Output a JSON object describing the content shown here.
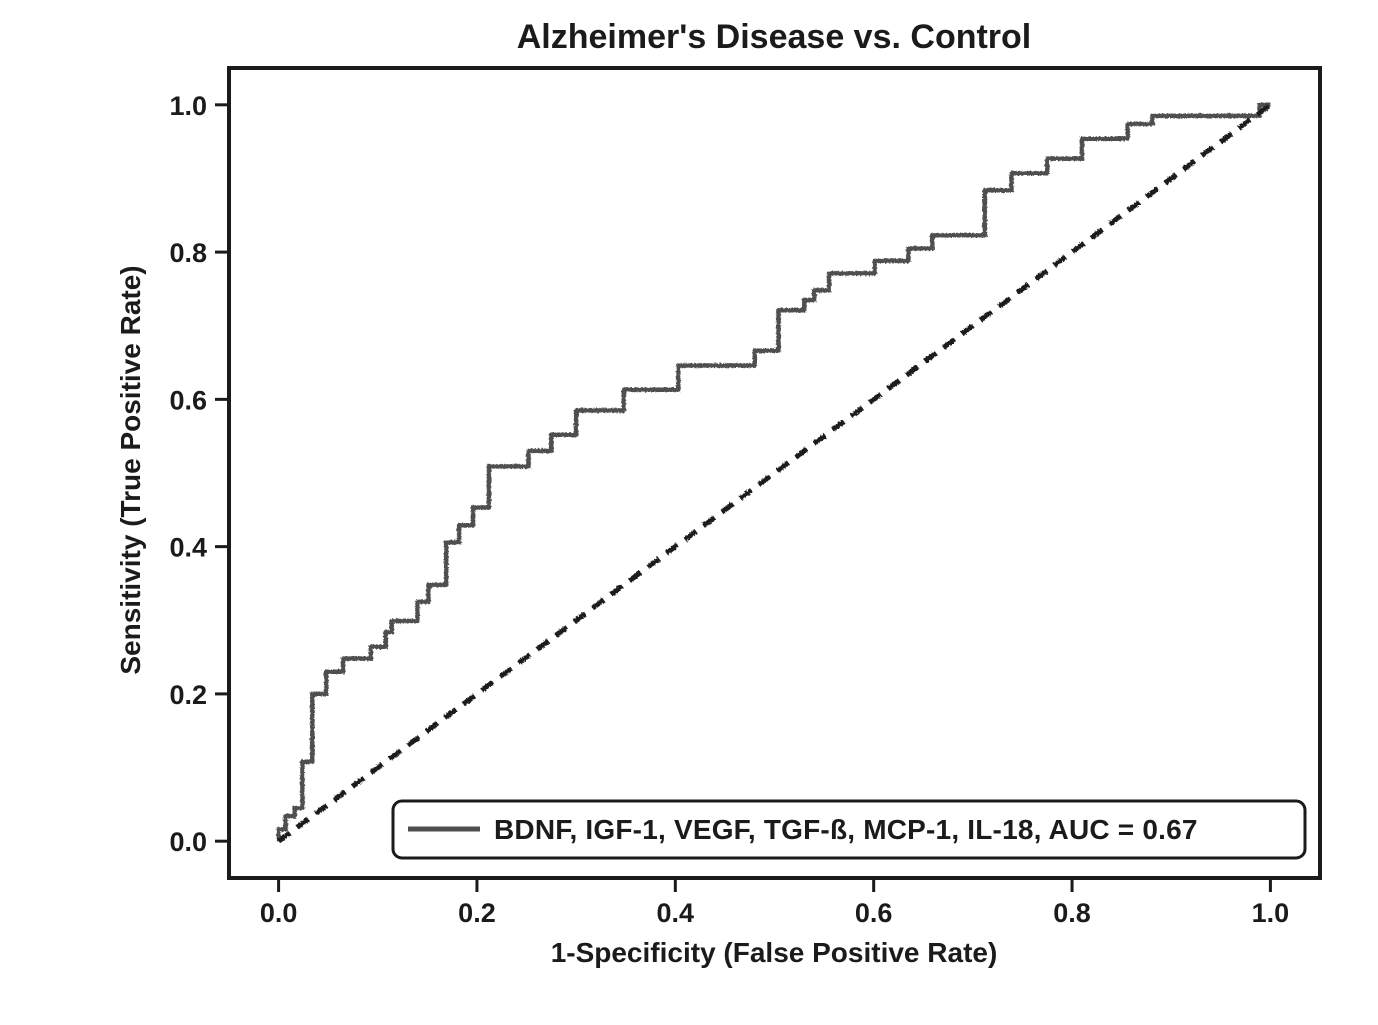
{
  "chart_data": {
    "type": "line",
    "subtype": "roc_step_curve",
    "title": "Alzheimer's Disease vs. Control",
    "xlabel": "1-Specificity (False Positive Rate)",
    "ylabel": "Sensitivity (True Positive Rate)",
    "xlim": [
      -0.05,
      1.05
    ],
    "ylim": [
      -0.05,
      1.05
    ],
    "grid": false,
    "x_tick_values": [
      0.0,
      0.2,
      0.4,
      0.6,
      0.8,
      1.0
    ],
    "x_tick_labels": [
      "0.0",
      "0.2",
      "0.4",
      "0.6",
      "0.8",
      "1.0"
    ],
    "y_tick_values": [
      0.0,
      0.2,
      0.4,
      0.6,
      0.8,
      1.0
    ],
    "y_tick_labels": [
      "0.0",
      "0.2",
      "0.4",
      "0.6",
      "0.8",
      "1.0"
    ],
    "legend": {
      "position": "lower-right",
      "label": "BDNF, IGF-1, VEGF, TGF-ß, MCP-1, IL-18, AUC = 0.67"
    },
    "colors": {
      "curve": "#4f4f4f",
      "diagonal": "#1b1b1b",
      "frame": "#1b1b1b",
      "text": "#1b1b1b",
      "background": "#ffffff"
    },
    "series": [
      {
        "role": "roc",
        "label": "BDNF, IGF-1, VEGF, TGF-ß, MCP-1, IL-18, AUC = 0.67",
        "auc": 0.67,
        "color": "#4f4f4f",
        "line_style": "solid",
        "points": [
          [
            0.0,
            0.0
          ],
          [
            0.0,
            0.016
          ],
          [
            0.007,
            0.016
          ],
          [
            0.007,
            0.034
          ],
          [
            0.016,
            0.034
          ],
          [
            0.016,
            0.045
          ],
          [
            0.024,
            0.045
          ],
          [
            0.024,
            0.108
          ],
          [
            0.034,
            0.108
          ],
          [
            0.034,
            0.2
          ],
          [
            0.048,
            0.2
          ],
          [
            0.048,
            0.23
          ],
          [
            0.065,
            0.23
          ],
          [
            0.065,
            0.248
          ],
          [
            0.093,
            0.248
          ],
          [
            0.093,
            0.264
          ],
          [
            0.108,
            0.264
          ],
          [
            0.108,
            0.284
          ],
          [
            0.114,
            0.284
          ],
          [
            0.114,
            0.299
          ],
          [
            0.14,
            0.299
          ],
          [
            0.14,
            0.325
          ],
          [
            0.151,
            0.325
          ],
          [
            0.151,
            0.348
          ],
          [
            0.169,
            0.348
          ],
          [
            0.169,
            0.406
          ],
          [
            0.182,
            0.406
          ],
          [
            0.182,
            0.429
          ],
          [
            0.196,
            0.429
          ],
          [
            0.196,
            0.453
          ],
          [
            0.212,
            0.453
          ],
          [
            0.212,
            0.509
          ],
          [
            0.252,
            0.509
          ],
          [
            0.252,
            0.53
          ],
          [
            0.275,
            0.53
          ],
          [
            0.275,
            0.552
          ],
          [
            0.3,
            0.552
          ],
          [
            0.3,
            0.585
          ],
          [
            0.348,
            0.585
          ],
          [
            0.348,
            0.613
          ],
          [
            0.403,
            0.613
          ],
          [
            0.403,
            0.646
          ],
          [
            0.48,
            0.646
          ],
          [
            0.48,
            0.666
          ],
          [
            0.504,
            0.666
          ],
          [
            0.504,
            0.721
          ],
          [
            0.53,
            0.721
          ],
          [
            0.53,
            0.735
          ],
          [
            0.54,
            0.735
          ],
          [
            0.54,
            0.748
          ],
          [
            0.555,
            0.748
          ],
          [
            0.555,
            0.771
          ],
          [
            0.601,
            0.771
          ],
          [
            0.601,
            0.788
          ],
          [
            0.635,
            0.788
          ],
          [
            0.635,
            0.805
          ],
          [
            0.659,
            0.805
          ],
          [
            0.659,
            0.823
          ],
          [
            0.712,
            0.823
          ],
          [
            0.712,
            0.884
          ],
          [
            0.739,
            0.884
          ],
          [
            0.739,
            0.907
          ],
          [
            0.775,
            0.907
          ],
          [
            0.775,
            0.927
          ],
          [
            0.81,
            0.927
          ],
          [
            0.81,
            0.954
          ],
          [
            0.856,
            0.954
          ],
          [
            0.856,
            0.974
          ],
          [
            0.881,
            0.974
          ],
          [
            0.881,
            0.985
          ],
          [
            0.989,
            0.985
          ],
          [
            0.989,
            1.0
          ],
          [
            1.0,
            1.0
          ]
        ]
      },
      {
        "role": "reference-diagonal",
        "label": "",
        "color": "#1b1b1b",
        "line_style": "dashed",
        "points": [
          [
            0.0,
            0.0
          ],
          [
            1.0,
            1.0
          ]
        ]
      }
    ]
  }
}
